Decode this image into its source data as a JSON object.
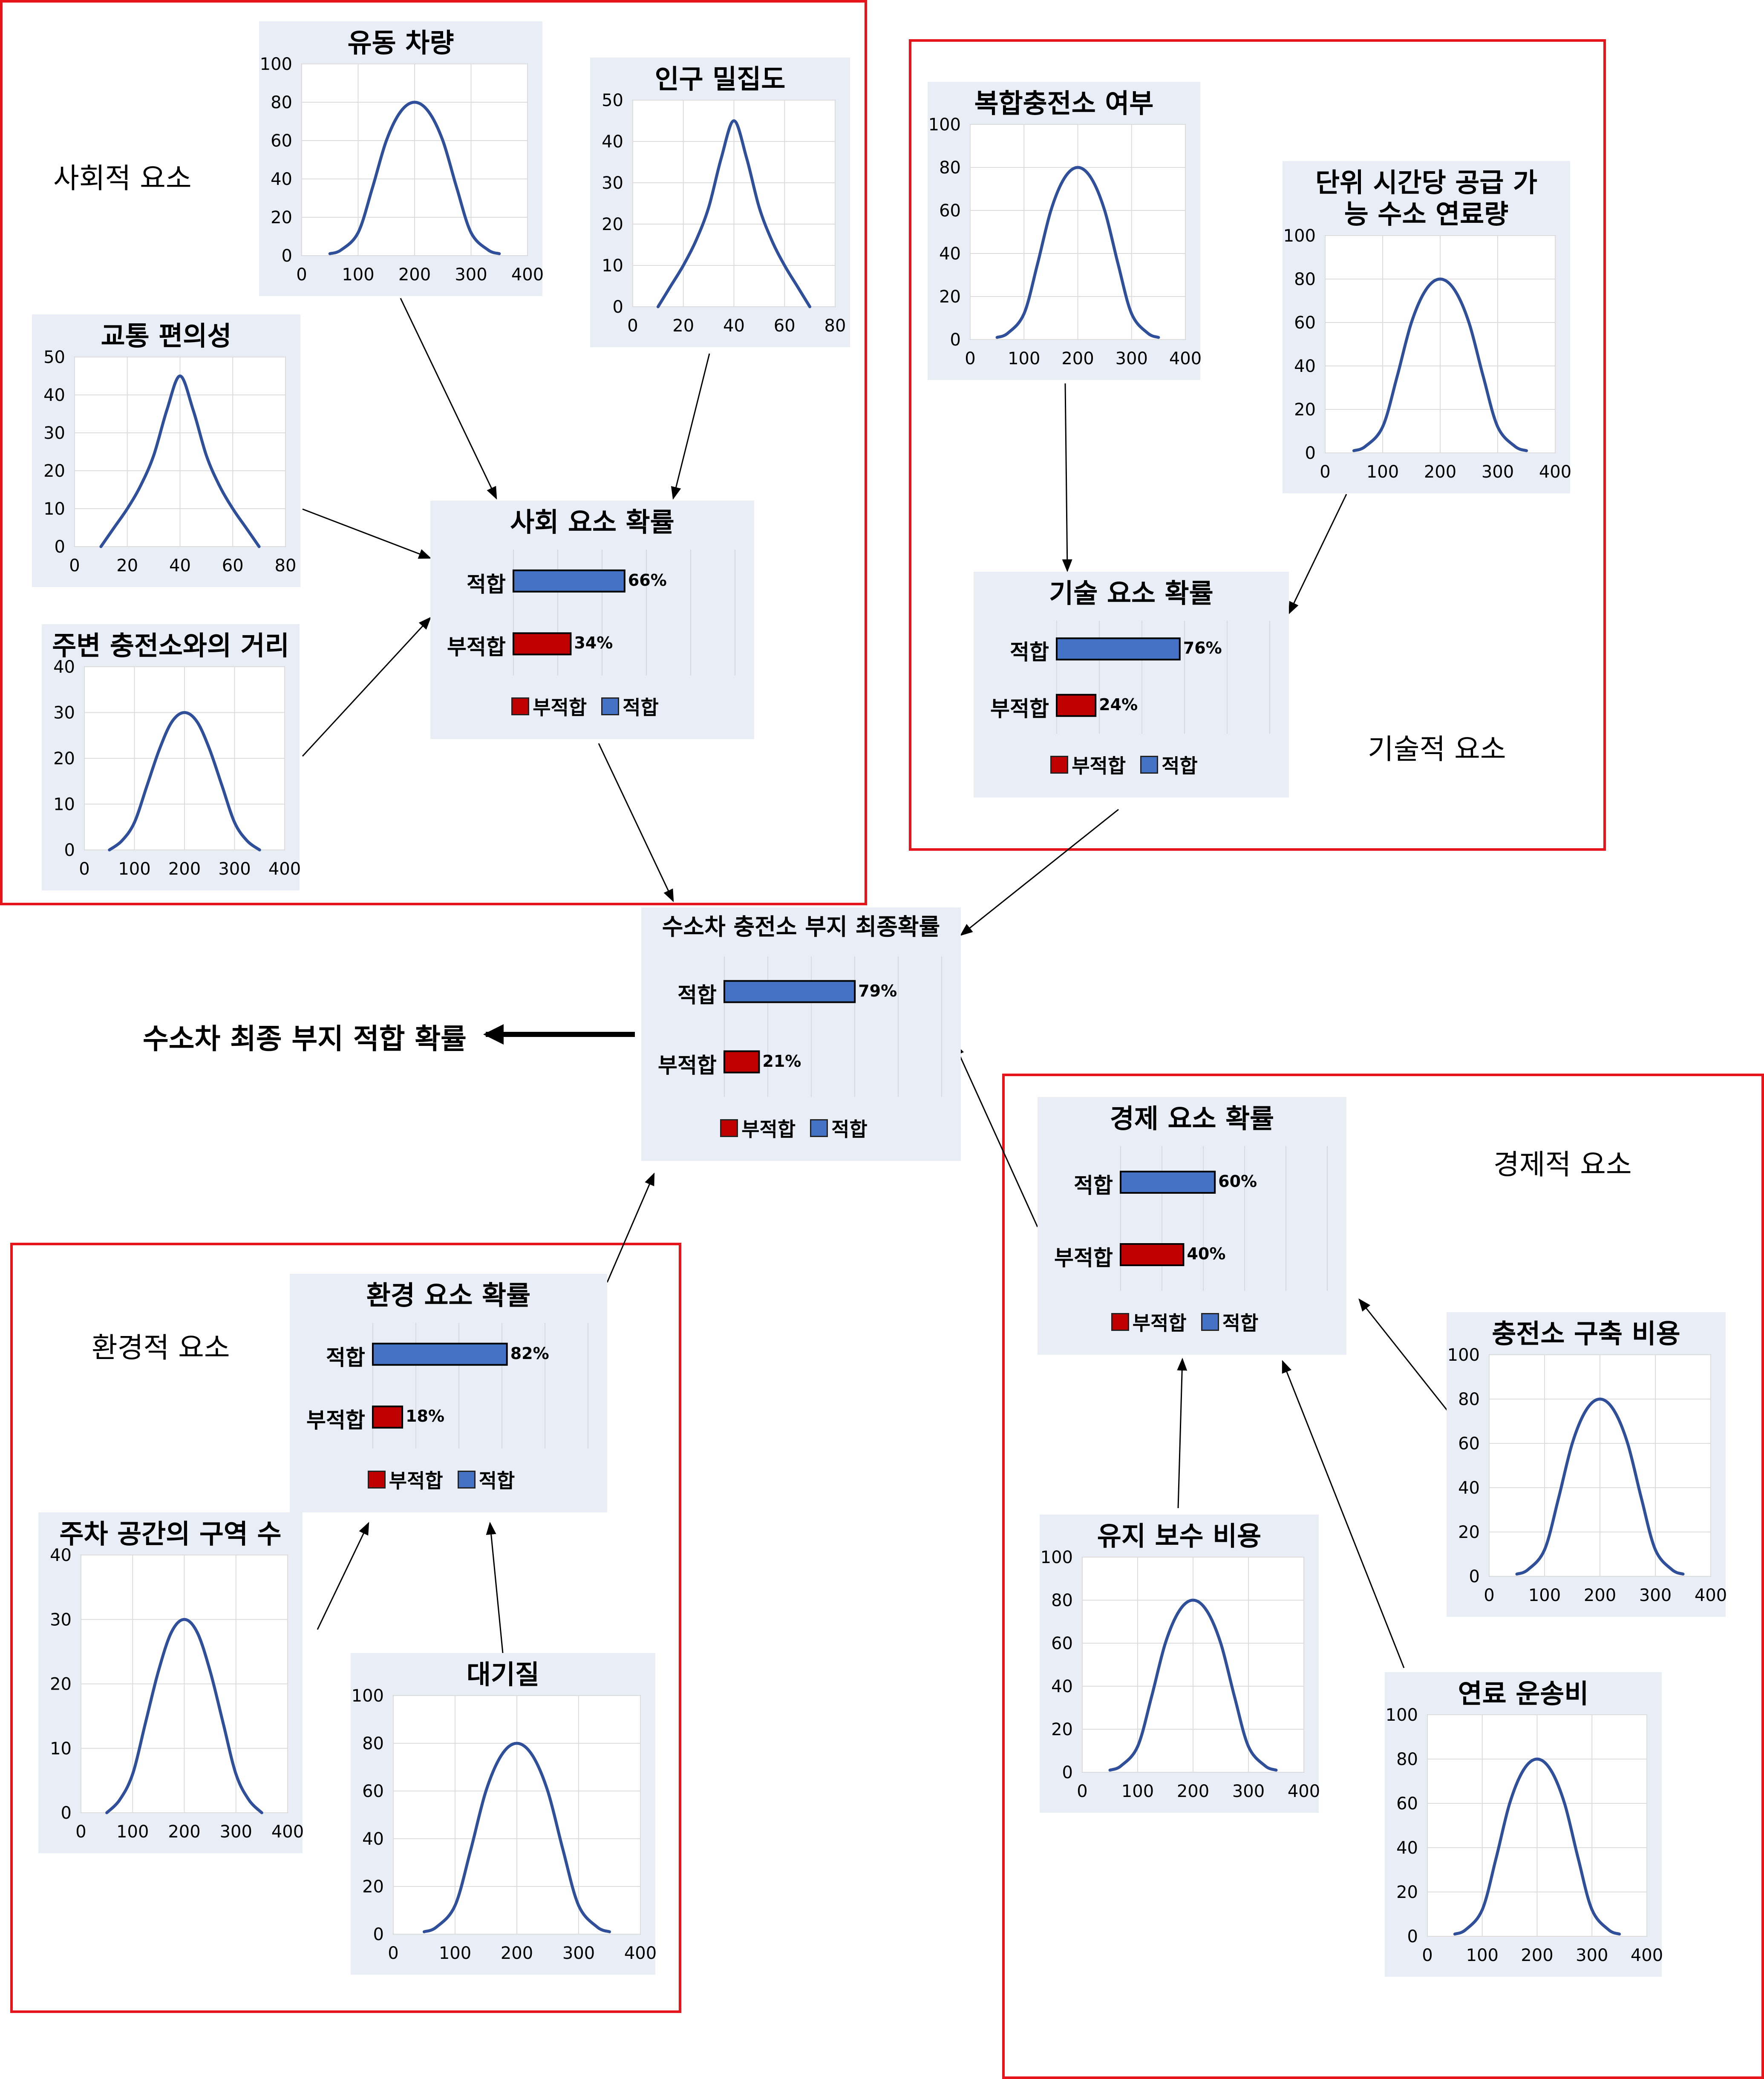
{
  "groups": [
    {
      "id": "social",
      "label": "사회적 요소"
    },
    {
      "id": "tech",
      "label": "기술적 요소"
    },
    {
      "id": "econ",
      "label": "경제적 요소"
    },
    {
      "id": "env",
      "label": "환경적 요소"
    }
  ],
  "final_label": "수소차 최종 부지 적합 확률",
  "curves": [
    {
      "id": "traffic-flow",
      "title": "유동 차량",
      "x_ticks": [
        "0",
        "100",
        "200",
        "300",
        "400"
      ],
      "y_ticks": [
        "0",
        "20",
        "40",
        "60",
        "80",
        "100"
      ],
      "xlim": [
        0,
        400
      ],
      "ylim": [
        0,
        100
      ],
      "x": [
        50,
        70,
        100,
        125,
        150,
        175,
        200,
        225,
        250,
        275,
        300,
        330,
        350
      ],
      "y": [
        1,
        3,
        12,
        35,
        60,
        75,
        80,
        75,
        60,
        35,
        12,
        3,
        1
      ]
    },
    {
      "id": "population-density",
      "title": "인구 밀집도",
      "x_ticks": [
        "0",
        "20",
        "40",
        "60",
        "80"
      ],
      "y_ticks": [
        "0",
        "10",
        "20",
        "30",
        "40",
        "50"
      ],
      "xlim": [
        0,
        80
      ],
      "ylim": [
        0,
        50
      ],
      "x": [
        10,
        15,
        20,
        25,
        30,
        35,
        40,
        45,
        50,
        55,
        60,
        65,
        70
      ],
      "y": [
        0,
        5,
        10,
        16,
        24,
        36,
        45,
        36,
        24,
        16,
        10,
        5,
        0
      ]
    },
    {
      "id": "transport-convenience",
      "title": "교통 편의성",
      "x_ticks": [
        "0",
        "20",
        "40",
        "60",
        "80"
      ],
      "y_ticks": [
        "0",
        "10",
        "20",
        "30",
        "40",
        "50"
      ],
      "xlim": [
        0,
        80
      ],
      "ylim": [
        0,
        50
      ],
      "x": [
        10,
        15,
        20,
        25,
        30,
        35,
        40,
        45,
        50,
        55,
        60,
        65,
        70
      ],
      "y": [
        0,
        5,
        10,
        16,
        24,
        36,
        45,
        36,
        24,
        16,
        10,
        5,
        0
      ]
    },
    {
      "id": "nearby-station-distance",
      "title": "주변 충전소와의 거리",
      "x_ticks": [
        "0",
        "100",
        "200",
        "300",
        "400"
      ],
      "y_ticks": [
        "0",
        "10",
        "20",
        "30",
        "40"
      ],
      "xlim": [
        0,
        400
      ],
      "ylim": [
        0,
        40
      ],
      "x": [
        50,
        75,
        100,
        125,
        150,
        175,
        200,
        225,
        250,
        275,
        300,
        325,
        350
      ],
      "y": [
        0,
        2,
        6,
        14,
        22,
        28,
        30,
        28,
        22,
        14,
        6,
        2,
        0
      ]
    },
    {
      "id": "combined-station",
      "title": "복합충전소 여부",
      "x_ticks": [
        "0",
        "100",
        "200",
        "300",
        "400"
      ],
      "y_ticks": [
        "0",
        "20",
        "40",
        "60",
        "80",
        "100"
      ],
      "xlim": [
        0,
        400
      ],
      "ylim": [
        0,
        100
      ],
      "x": [
        50,
        70,
        100,
        125,
        150,
        175,
        200,
        225,
        250,
        275,
        300,
        330,
        350
      ],
      "y": [
        1,
        3,
        12,
        35,
        60,
        75,
        80,
        75,
        60,
        35,
        12,
        3,
        1
      ]
    },
    {
      "id": "hydrogen-supply",
      "title": "단위 시간당 공급 가능 수소 연료량",
      "x_ticks": [
        "0",
        "100",
        "200",
        "300",
        "400"
      ],
      "y_ticks": [
        "0",
        "20",
        "40",
        "60",
        "80",
        "100"
      ],
      "xlim": [
        0,
        400
      ],
      "ylim": [
        0,
        100
      ],
      "x": [
        50,
        70,
        100,
        125,
        150,
        175,
        200,
        225,
        250,
        275,
        300,
        330,
        350
      ],
      "y": [
        1,
        3,
        12,
        35,
        60,
        75,
        80,
        75,
        60,
        35,
        12,
        3,
        1
      ]
    },
    {
      "id": "construction-cost",
      "title": "충전소 구축 비용",
      "x_ticks": [
        "0",
        "100",
        "200",
        "300",
        "400"
      ],
      "y_ticks": [
        "0",
        "20",
        "40",
        "60",
        "80",
        "100"
      ],
      "xlim": [
        0,
        400
      ],
      "ylim": [
        0,
        100
      ],
      "x": [
        50,
        70,
        100,
        125,
        150,
        175,
        200,
        225,
        250,
        275,
        300,
        330,
        350
      ],
      "y": [
        1,
        3,
        12,
        35,
        60,
        75,
        80,
        75,
        60,
        35,
        12,
        3,
        1
      ]
    },
    {
      "id": "maintenance-cost",
      "title": "유지 보수 비용",
      "x_ticks": [
        "0",
        "100",
        "200",
        "300",
        "400"
      ],
      "y_ticks": [
        "0",
        "20",
        "40",
        "60",
        "80",
        "100"
      ],
      "xlim": [
        0,
        400
      ],
      "ylim": [
        0,
        100
      ],
      "x": [
        50,
        70,
        100,
        125,
        150,
        175,
        200,
        225,
        250,
        275,
        300,
        330,
        350
      ],
      "y": [
        1,
        3,
        12,
        35,
        60,
        75,
        80,
        75,
        60,
        35,
        12,
        3,
        1
      ]
    },
    {
      "id": "fuel-transport-cost",
      "title": "연료 운송비",
      "x_ticks": [
        "0",
        "100",
        "200",
        "300",
        "400"
      ],
      "y_ticks": [
        "0",
        "20",
        "40",
        "60",
        "80",
        "100"
      ],
      "xlim": [
        0,
        400
      ],
      "ylim": [
        0,
        100
      ],
      "x": [
        50,
        70,
        100,
        125,
        150,
        175,
        200,
        225,
        250,
        275,
        300,
        330,
        350
      ],
      "y": [
        1,
        3,
        12,
        35,
        60,
        75,
        80,
        75,
        60,
        35,
        12,
        3,
        1
      ]
    },
    {
      "id": "parking-spaces",
      "title": "주차 공간의 구역 수",
      "x_ticks": [
        "0",
        "100",
        "200",
        "300",
        "400"
      ],
      "y_ticks": [
        "0",
        "10",
        "20",
        "30",
        "40"
      ],
      "xlim": [
        0,
        400
      ],
      "ylim": [
        0,
        40
      ],
      "x": [
        50,
        75,
        100,
        125,
        150,
        175,
        200,
        225,
        250,
        275,
        300,
        325,
        350
      ],
      "y": [
        0,
        2,
        6,
        14,
        22,
        28,
        30,
        28,
        22,
        14,
        6,
        2,
        0
      ]
    },
    {
      "id": "air-quality",
      "title": "대기질",
      "x_ticks": [
        "0",
        "100",
        "200",
        "300",
        "400"
      ],
      "y_ticks": [
        "0",
        "20",
        "40",
        "60",
        "80",
        "100"
      ],
      "xlim": [
        0,
        400
      ],
      "ylim": [
        0,
        100
      ],
      "x": [
        50,
        70,
        100,
        125,
        150,
        175,
        200,
        225,
        250,
        275,
        300,
        330,
        350
      ],
      "y": [
        1,
        3,
        12,
        35,
        60,
        75,
        80,
        75,
        60,
        35,
        12,
        3,
        1
      ]
    }
  ],
  "probs": [
    {
      "id": "social-prob",
      "title": "사회 요소 확률",
      "suit_label": "적합",
      "unsuit_label": "부적합",
      "suit": 66,
      "unsuit": 34,
      "suit_text": "66%",
      "unsuit_text": "34%",
      "legend_unsuit": "부적합",
      "legend_suit": "적합"
    },
    {
      "id": "tech-prob",
      "title": "기술 요소 확률",
      "suit_label": "적합",
      "unsuit_label": "부적합",
      "suit": 76,
      "unsuit": 24,
      "suit_text": "76%",
      "unsuit_text": "24%",
      "legend_unsuit": "부적합",
      "legend_suit": "적합"
    },
    {
      "id": "final-prob",
      "title": "수소차 충전소 부지 최종확률",
      "suit_label": "적합",
      "unsuit_label": "부적합",
      "suit": 79,
      "unsuit": 21,
      "suit_text": "79%",
      "unsuit_text": "21%",
      "legend_unsuit": "부적합",
      "legend_suit": "적합"
    },
    {
      "id": "econ-prob",
      "title": "경제 요소 확률",
      "suit_label": "적합",
      "unsuit_label": "부적합",
      "suit": 60,
      "unsuit": 40,
      "suit_text": "60%",
      "unsuit_text": "40%",
      "legend_unsuit": "부적합",
      "legend_suit": "적합"
    },
    {
      "id": "env-prob",
      "title": "환경 요소 확률",
      "suit_label": "적합",
      "unsuit_label": "부적합",
      "suit": 82,
      "unsuit": 18,
      "suit_text": "82%",
      "unsuit_text": "18%",
      "legend_unsuit": "부적합",
      "legend_suit": "적합"
    }
  ],
  "colors": {
    "suit": "#4472c4",
    "unsuit": "#c00000",
    "curve": "#2f4f9a",
    "group_border": "#e8141b",
    "panel_bg": "#e9edf5"
  }
}
